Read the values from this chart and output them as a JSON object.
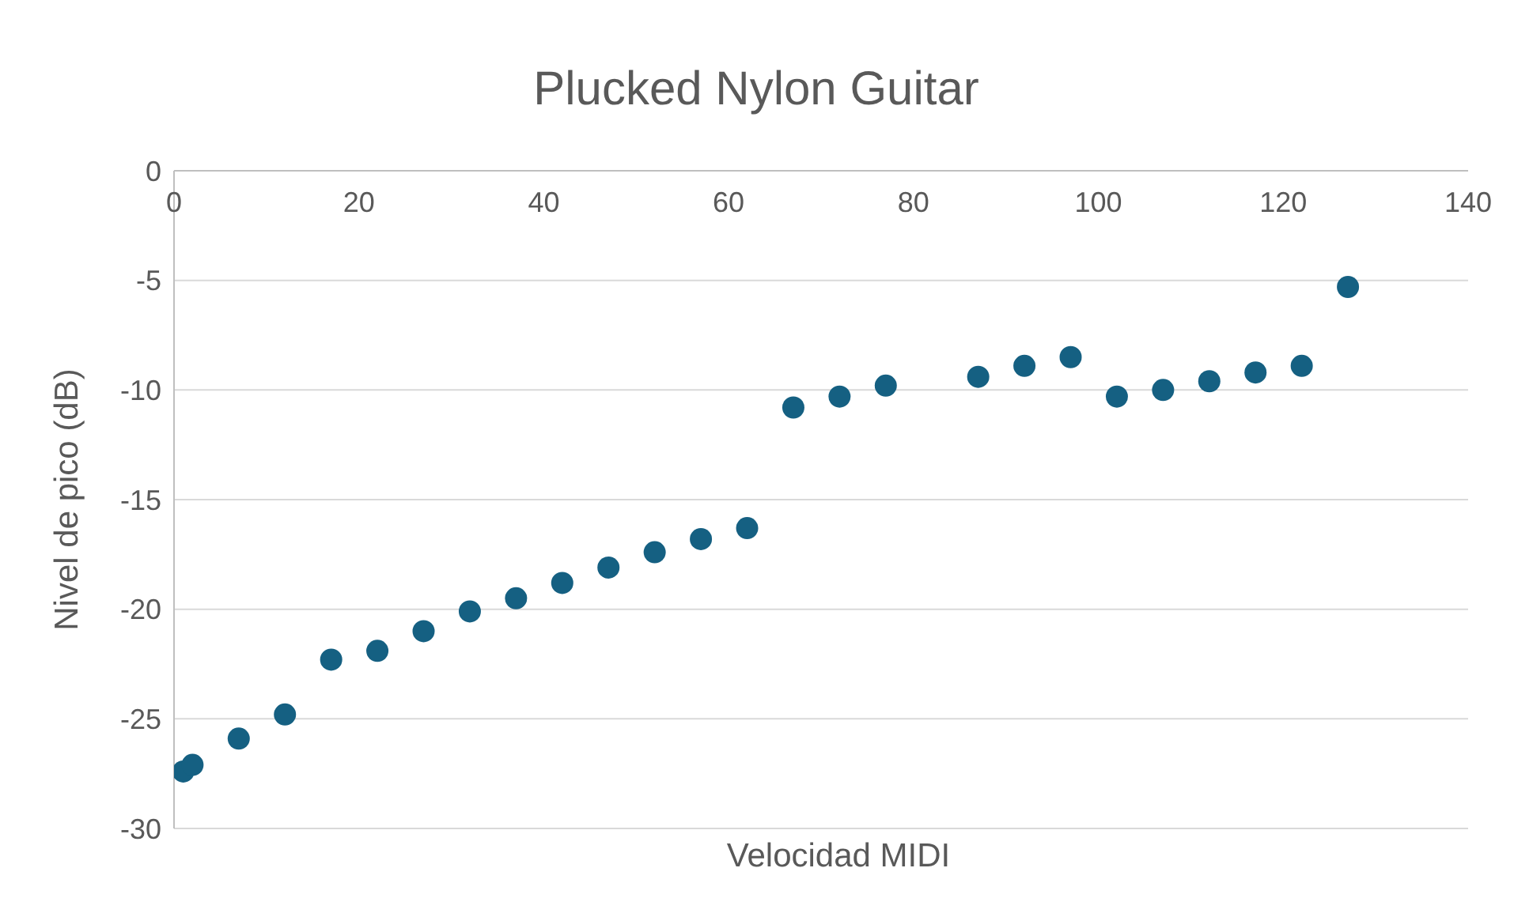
{
  "chart_data": {
    "type": "scatter",
    "title": "Plucked Nylon Guitar",
    "xlabel": "Velocidad MIDI",
    "ylabel": "Nivel de pico (dB)",
    "x": [
      1,
      2,
      7,
      12,
      17,
      22,
      27,
      32,
      37,
      42,
      47,
      52,
      57,
      62,
      67,
      72,
      77,
      87,
      92,
      97,
      102,
      107,
      112,
      117,
      122,
      127
    ],
    "series": [
      {
        "color": "#156082",
        "values": [
          -27.4,
          -27.1,
          -25.9,
          -24.8,
          -22.3,
          -21.9,
          -21.0,
          -20.1,
          -19.5,
          -18.8,
          -18.1,
          -17.4,
          -16.8,
          -16.3,
          -10.8,
          -10.3,
          -9.8,
          -9.4,
          -8.9,
          -8.5,
          -10.3,
          -10.0,
          -9.6,
          -9.2,
          -8.9,
          -5.3
        ]
      }
    ],
    "xlim": [
      0,
      140
    ],
    "xticks": [
      0,
      20,
      40,
      60,
      80,
      100,
      120,
      140
    ],
    "ylim": [
      -30,
      0
    ],
    "yticks": [
      -30,
      -25,
      -20,
      -15,
      -10,
      -5,
      0
    ],
    "grid": "y",
    "marker": "circle",
    "legend": false
  }
}
